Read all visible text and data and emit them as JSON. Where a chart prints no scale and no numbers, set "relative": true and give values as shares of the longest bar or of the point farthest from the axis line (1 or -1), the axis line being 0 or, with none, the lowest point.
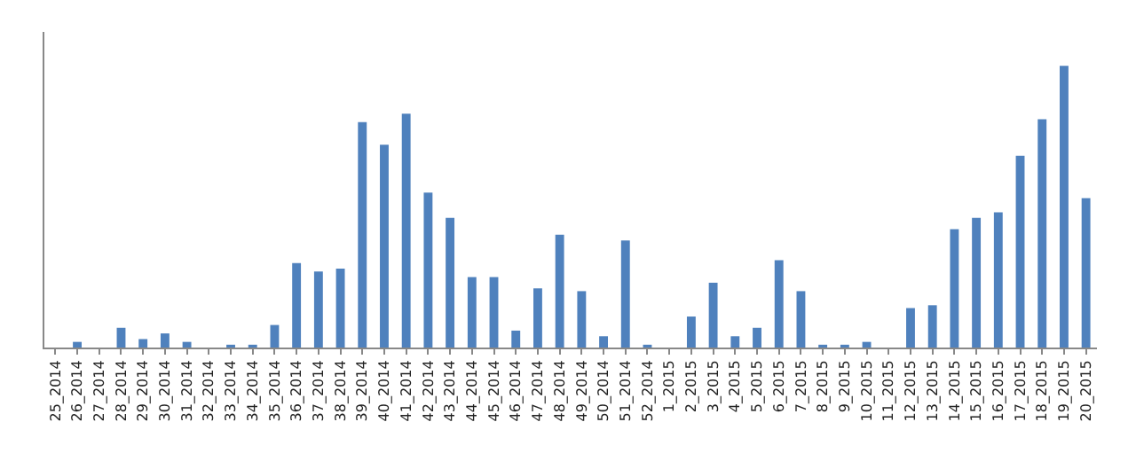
{
  "chart_data": {
    "type": "bar",
    "relative": true,
    "color": "#4f81bd",
    "grid": false,
    "categories": [
      "25_2014",
      "26_2014",
      "27_2014",
      "28_2014",
      "29_2014",
      "30_2014",
      "31_2014",
      "32_2014",
      "33_2014",
      "34_2014",
      "35_2014",
      "36_2014",
      "37_2014",
      "38_2014",
      "39_2014",
      "40_2014",
      "41_2014",
      "42_2014",
      "43_2014",
      "44_2014",
      "45_2014",
      "46_2014",
      "47_2014",
      "48_2014",
      "49_2014",
      "50_2014",
      "51_2014",
      "52_2014",
      "1_2015",
      "2_2015",
      "3_2015",
      "4_2015",
      "5_2015",
      "6_2015",
      "7_2015",
      "8_2015",
      "9_2015",
      "10_2015",
      "11_2015",
      "12_2015",
      "13_2015",
      "14_2015",
      "15_2015",
      "16_2015",
      "17_2015",
      "18_2015",
      "19_2015",
      "20_2015"
    ],
    "values": [
      0,
      0.02,
      0,
      0.07,
      0.03,
      0.05,
      0.02,
      0,
      0.01,
      0.01,
      0.08,
      0.3,
      0.27,
      0.28,
      0.8,
      0.72,
      0.83,
      0.55,
      0.46,
      0.25,
      0.25,
      0.06,
      0.21,
      0.4,
      0.2,
      0.04,
      0.38,
      0.01,
      0,
      0.11,
      0.23,
      0.04,
      0.07,
      0.31,
      0.2,
      0.01,
      0.01,
      0.02,
      0,
      0.14,
      0.15,
      0.42,
      0.46,
      0.48,
      0.68,
      0.81,
      1,
      0.53
    ]
  }
}
